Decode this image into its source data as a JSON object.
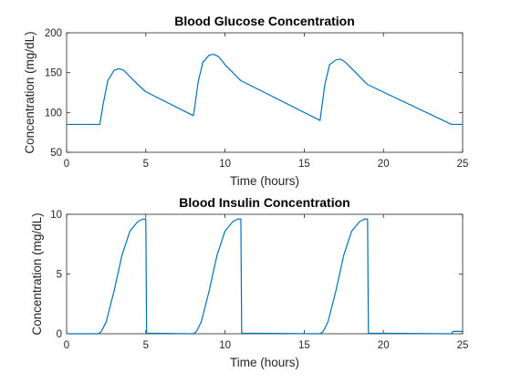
{
  "chart_data": [
    {
      "type": "line",
      "title": "Blood Glucose Concentration",
      "xlabel": "Time (hours)",
      "ylabel": "Concentration (mg/dL)",
      "xlim": [
        0,
        25
      ],
      "ylim": [
        50,
        200
      ],
      "xticks": [
        0,
        5,
        10,
        15,
        20,
        25
      ],
      "yticks": [
        50,
        100,
        150,
        200
      ],
      "grid": false,
      "series": [
        {
          "color": "#0072BD",
          "x": [
            0,
            2.1,
            2.3,
            2.6,
            3.0,
            3.3,
            3.6,
            4.0,
            4.5,
            5.0,
            8.0,
            8.1,
            8.3,
            8.6,
            9.0,
            9.3,
            9.6,
            10.0,
            10.5,
            11.0,
            16.0,
            16.1,
            16.3,
            16.6,
            17.0,
            17.3,
            17.6,
            18.0,
            18.5,
            19.0,
            24.3,
            25.0
          ],
          "y": [
            85,
            85,
            110,
            140,
            153,
            155,
            153,
            145,
            135,
            126,
            96,
            108,
            138,
            163,
            172,
            173,
            170,
            160,
            150,
            140,
            90,
            105,
            135,
            160,
            166,
            167,
            163,
            155,
            145,
            135,
            85,
            85
          ]
        }
      ]
    },
    {
      "type": "line",
      "title": "Blood Insulin Concentration",
      "xlabel": "Time (hours)",
      "ylabel": "Concentration (mg/dL)",
      "xlim": [
        0,
        25
      ],
      "ylim": [
        0,
        10
      ],
      "xticks": [
        0,
        5,
        10,
        15,
        20,
        25
      ],
      "yticks": [
        0,
        5,
        10
      ],
      "grid": false,
      "series": [
        {
          "color": "#0072BD",
          "x": [
            0,
            2.0,
            2.2,
            2.5,
            3.0,
            3.5,
            4.0,
            4.5,
            4.8,
            5.0,
            5.05,
            8.0,
            8.2,
            8.5,
            9.0,
            9.5,
            10.0,
            10.5,
            10.8,
            11.0,
            11.05,
            16.0,
            16.2,
            16.5,
            17.0,
            17.5,
            18.0,
            18.5,
            18.8,
            19.0,
            19.05,
            24.3,
            24.4,
            25.0
          ],
          "y": [
            0,
            0,
            0.2,
            1.0,
            3.6,
            6.6,
            8.6,
            9.4,
            9.6,
            9.6,
            0.05,
            0,
            0.2,
            1.0,
            3.6,
            6.6,
            8.6,
            9.4,
            9.6,
            9.6,
            0.05,
            0,
            0.2,
            1.0,
            3.6,
            6.6,
            8.6,
            9.4,
            9.6,
            9.6,
            0.05,
            0,
            0.2,
            0.2
          ]
        }
      ]
    }
  ]
}
